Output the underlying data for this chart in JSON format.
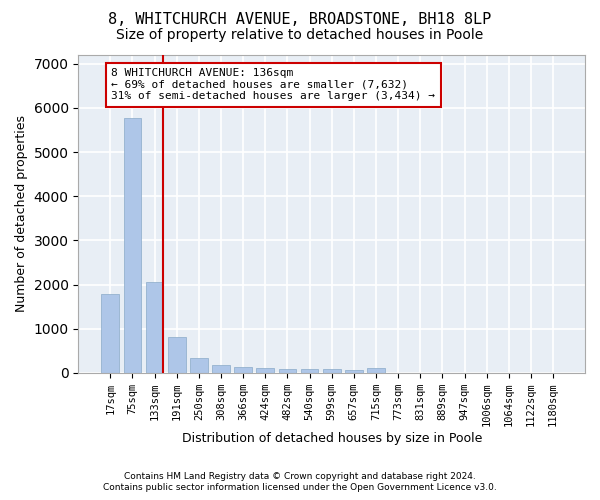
{
  "title": "8, WHITCHURCH AVENUE, BROADSTONE, BH18 8LP",
  "subtitle": "Size of property relative to detached houses in Poole",
  "xlabel": "Distribution of detached houses by size in Poole",
  "ylabel": "Number of detached properties",
  "categories": [
    "17sqm",
    "75sqm",
    "133sqm",
    "191sqm",
    "250sqm",
    "308sqm",
    "366sqm",
    "424sqm",
    "482sqm",
    "540sqm",
    "599sqm",
    "657sqm",
    "715sqm",
    "773sqm",
    "831sqm",
    "889sqm",
    "947sqm",
    "1006sqm",
    "1064sqm",
    "1122sqm",
    "1180sqm"
  ],
  "values": [
    1780,
    5780,
    2060,
    820,
    340,
    190,
    130,
    110,
    100,
    95,
    80,
    70,
    110,
    0,
    0,
    0,
    0,
    0,
    0,
    0,
    0
  ],
  "bar_color": "#aec6e8",
  "bar_edge_color": "#8aaac8",
  "vline_color": "#cc0000",
  "vline_x_index": 2,
  "annotation_text": "8 WHITCHURCH AVENUE: 136sqm\n← 69% of detached houses are smaller (7,632)\n31% of semi-detached houses are larger (3,434) →",
  "annotation_box_color": "#ffffff",
  "annotation_box_edge": "#cc0000",
  "ylim": [
    0,
    7200
  ],
  "yticks": [
    0,
    1000,
    2000,
    3000,
    4000,
    5000,
    6000,
    7000
  ],
  "background_color": "#e8eef5",
  "grid_color": "#ffffff",
  "footnote1": "Contains HM Land Registry data © Crown copyright and database right 2024.",
  "footnote2": "Contains public sector information licensed under the Open Government Licence v3.0.",
  "title_fontsize": 11,
  "subtitle_fontsize": 10,
  "ylabel_fontsize": 9,
  "xlabel_fontsize": 9,
  "tick_fontsize": 7.5,
  "annot_fontsize": 8,
  "footnote_fontsize": 6.5
}
